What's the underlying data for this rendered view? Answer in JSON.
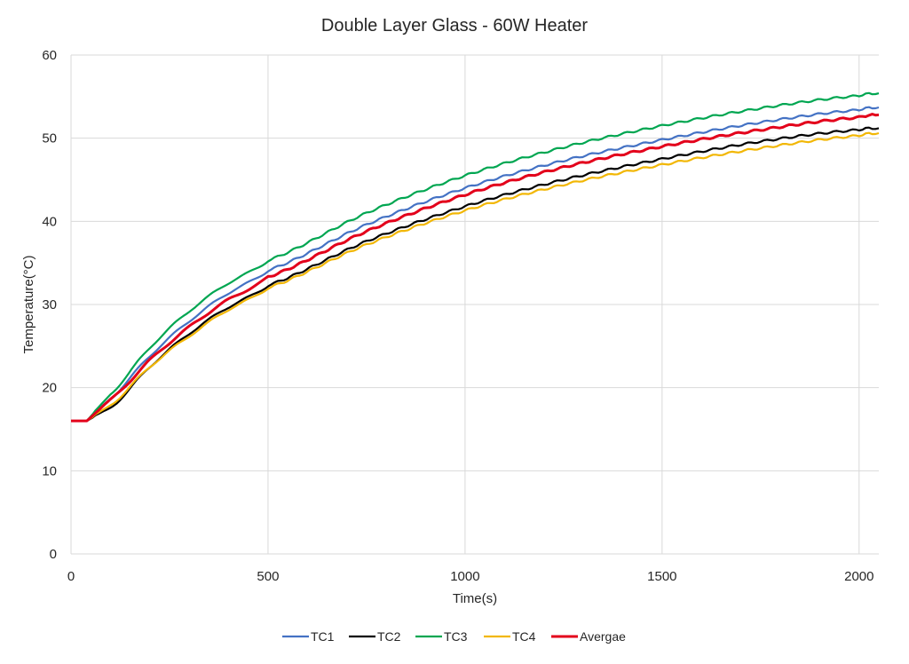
{
  "chart_data": {
    "type": "line",
    "title": "Double Layer Glass - 60W Heater",
    "xlabel": "Time(s)",
    "ylabel": "Temperature(°C)",
    "xlim": [
      0,
      2050
    ],
    "ylim": [
      0,
      60
    ],
    "xticks": [
      0,
      500,
      1000,
      1500,
      2000
    ],
    "yticks": [
      0,
      10,
      20,
      30,
      40,
      50,
      60
    ],
    "grid": true,
    "legend": "bottom",
    "x": [
      0,
      40,
      100,
      200,
      300,
      400,
      500,
      750,
      1000,
      1250,
      1500,
      1750,
      2000,
      2050
    ],
    "series": [
      {
        "name": "TC1",
        "color": "#4472C4",
        "values": [
          16,
          16,
          18.7,
          23.8,
          28.0,
          31.4,
          34.1,
          39.6,
          44.0,
          47.3,
          49.8,
          51.9,
          53.4,
          53.7
        ]
      },
      {
        "name": "TC2",
        "color": "#000000",
        "values": [
          16,
          16,
          17.6,
          22.5,
          26.5,
          29.7,
          32.3,
          37.6,
          41.8,
          45.0,
          47.5,
          49.6,
          51.0,
          51.2
        ]
      },
      {
        "name": "TC3",
        "color": "#00A651",
        "values": [
          16,
          16,
          19.2,
          24.8,
          29.2,
          32.6,
          35.3,
          41.0,
          45.5,
          48.9,
          51.5,
          53.6,
          55.1,
          55.4
        ]
      },
      {
        "name": "TC4",
        "color": "#F2B705",
        "values": [
          16,
          16,
          17.9,
          22.5,
          26.2,
          29.4,
          32.0,
          37.2,
          41.3,
          44.4,
          46.8,
          48.8,
          50.3,
          50.6
        ]
      },
      {
        "name": "Avergae",
        "color": "#E3001B",
        "values": [
          16,
          16,
          18.5,
          23.3,
          27.3,
          30.6,
          33.3,
          38.8,
          43.2,
          46.5,
          49.0,
          51.0,
          52.5,
          52.8
        ]
      }
    ]
  }
}
